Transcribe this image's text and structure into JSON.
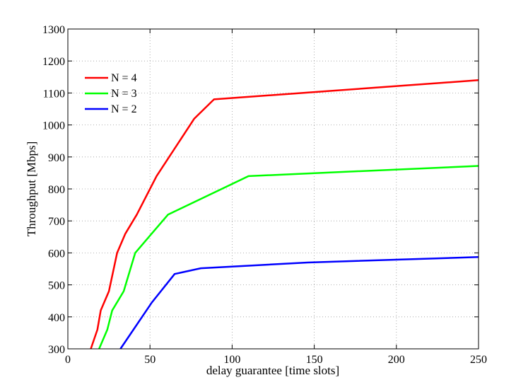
{
  "chart_data": {
    "type": "line",
    "title": "",
    "xlabel": "delay guarantee [time slots]",
    "ylabel": "Throughput [Mbps]",
    "xlim": [
      0,
      250
    ],
    "ylim": [
      300,
      1300
    ],
    "xticks": [
      0,
      50,
      100,
      150,
      200,
      250
    ],
    "yticks": [
      300,
      400,
      500,
      600,
      700,
      800,
      900,
      1000,
      1100,
      1200,
      1300
    ],
    "grid": true,
    "legend_position": "top-left",
    "series": [
      {
        "name": "N = 4",
        "color": "#ff0000",
        "x": [
          14,
          18,
          20,
          25,
          30,
          35,
          42,
          54,
          77,
          89,
          250
        ],
        "y": [
          300,
          360,
          420,
          480,
          600,
          660,
          720,
          840,
          1020,
          1080,
          1140
        ]
      },
      {
        "name": "N = 3",
        "color": "#00ff00",
        "x": [
          19,
          24,
          27,
          34,
          41,
          51,
          61,
          110,
          250
        ],
        "y": [
          300,
          360,
          420,
          480,
          600,
          660,
          720,
          840,
          872
        ]
      },
      {
        "name": "N = 2",
        "color": "#0000ff",
        "x": [
          32,
          51,
          65,
          81,
          146,
          250
        ],
        "y": [
          300,
          444,
          534,
          552,
          570,
          587
        ]
      }
    ]
  }
}
